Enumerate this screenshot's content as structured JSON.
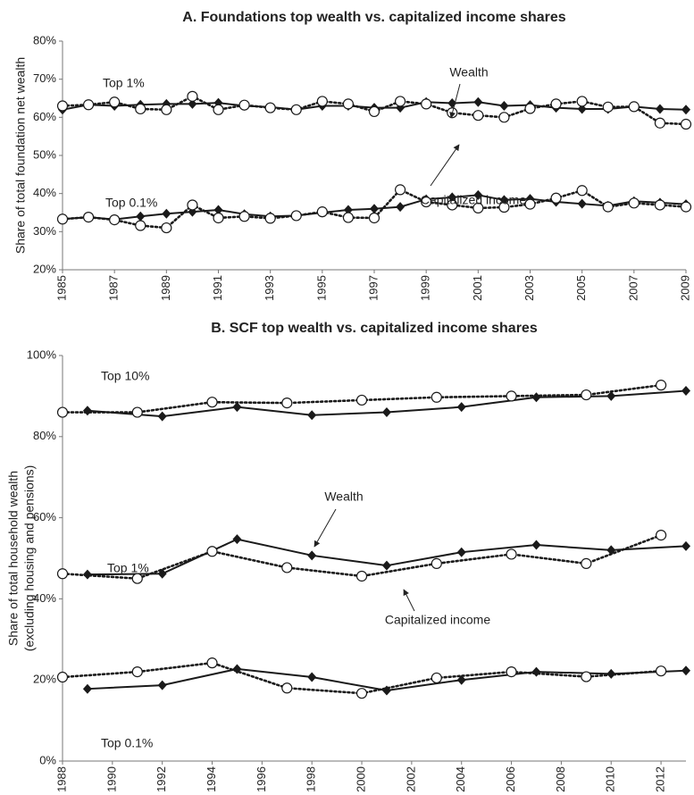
{
  "chart_data": [
    {
      "type": "line",
      "title": "A. Foundations top wealth vs. capitalized income shares",
      "ylabel": [
        "Share of total foundation net wealth"
      ],
      "xlim": [
        1985,
        2009
      ],
      "xticks": [
        1985,
        1987,
        1989,
        1991,
        1993,
        1995,
        1997,
        1999,
        2001,
        2003,
        2005,
        2007,
        2009
      ],
      "ylim": [
        20,
        80
      ],
      "yticks": [
        {
          "value": 20,
          "label": "20%"
        },
        {
          "value": 30,
          "label": "30%"
        },
        {
          "value": 40,
          "label": "40%"
        },
        {
          "value": 50,
          "label": "50%"
        },
        {
          "value": 60,
          "label": "60%"
        },
        {
          "value": 70,
          "label": "70%"
        },
        {
          "value": 80,
          "label": "80%"
        }
      ],
      "annotations": [
        "Top 1%",
        "Wealth",
        "Capitalized income",
        "Top 0.1%"
      ],
      "series": [
        {
          "marker": "diamond",
          "dash": "solid",
          "color": "#1a1a1a",
          "x": [
            1985,
            1986,
            1987,
            1988,
            1989,
            1990,
            1991,
            1992,
            1993,
            1994,
            1995,
            1996,
            1997,
            1998,
            1999,
            2000,
            2001,
            2002,
            2003,
            2004,
            2005,
            2006,
            2007,
            2008,
            2009
          ],
          "values": [
            62,
            63.3,
            63,
            63.3,
            63.5,
            63.5,
            63.8,
            63,
            62.7,
            62,
            63,
            63,
            62.5,
            62.5,
            64,
            63.7,
            64,
            63,
            63.2,
            62.5,
            62.2,
            62.2,
            62.8,
            62.2,
            62
          ]
        },
        {
          "marker": "circle",
          "dash": "dotted",
          "color": "#1a1a1a",
          "x": [
            1985,
            1986,
            1987,
            1988,
            1989,
            1990,
            1991,
            1992,
            1993,
            1994,
            1995,
            1996,
            1997,
            1998,
            1999,
            2000,
            2001,
            2002,
            2003,
            2004,
            2005,
            2006,
            2007,
            2008,
            2009
          ],
          "values": [
            63,
            63.3,
            64,
            62.2,
            62,
            65.5,
            62,
            63.2,
            62.5,
            62,
            64.2,
            63.5,
            61.5,
            64.2,
            63.5,
            61.2,
            60.5,
            60,
            62.3,
            63.5,
            64.2,
            62.7,
            62.8,
            58.5,
            58.2
          ]
        },
        {
          "marker": "diamond",
          "dash": "solid",
          "color": "#1a1a1a",
          "x": [
            1985,
            1986,
            1987,
            1988,
            1989,
            1990,
            1991,
            1992,
            1993,
            1994,
            1995,
            1996,
            1997,
            1998,
            1999,
            2000,
            2001,
            2002,
            2003,
            2004,
            2005,
            2006,
            2007,
            2008,
            2009
          ],
          "values": [
            33.3,
            33.8,
            33.2,
            34,
            34.7,
            35.2,
            35.7,
            34.6,
            34,
            34.2,
            35,
            35.7,
            36,
            36.5,
            38.5,
            39,
            39.6,
            38.3,
            38.6,
            37.8,
            37.3,
            36.8,
            38,
            37.6,
            37.2
          ]
        },
        {
          "marker": "circle",
          "dash": "dotted",
          "color": "#1a1a1a",
          "x": [
            1985,
            1986,
            1987,
            1988,
            1989,
            1990,
            1991,
            1992,
            1993,
            1994,
            1995,
            1996,
            1997,
            1998,
            1999,
            2000,
            2001,
            2002,
            2003,
            2004,
            2005,
            2006,
            2007,
            2008,
            2009
          ],
          "values": [
            33.3,
            33.8,
            33.1,
            31.6,
            31,
            37,
            33.6,
            34,
            33.5,
            34.2,
            35.2,
            33.7,
            33.6,
            41,
            37.8,
            37,
            36.2,
            36.4,
            37.2,
            38.8,
            40.8,
            36.5,
            37.5,
            37,
            36.5
          ]
        }
      ]
    },
    {
      "type": "line",
      "title": "B. SCF top wealth vs. capitalized income shares",
      "ylabel": [
        "Share of total household wealth",
        "(excluding housing and pensions)"
      ],
      "xlim": [
        1988,
        2013
      ],
      "xticks": [
        1988,
        1990,
        1992,
        1994,
        1996,
        1998,
        2000,
        2002,
        2004,
        2006,
        2008,
        2010,
        2012
      ],
      "ylim": [
        0,
        100
      ],
      "yticks": [
        {
          "value": 0,
          "label": "0%"
        },
        {
          "value": 20,
          "label": "20%"
        },
        {
          "value": 40,
          "label": "40%"
        },
        {
          "value": 60,
          "label": "60%"
        },
        {
          "value": 80,
          "label": "80%"
        },
        {
          "value": 100,
          "label": "100%"
        }
      ],
      "annotations": [
        "Top 10%",
        "Wealth",
        "Top 1%",
        "Capitalized income",
        "Top 0.1%"
      ],
      "series": [
        {
          "marker": "diamond",
          "dash": "solid",
          "color": "#1a1a1a",
          "x": [
            1989,
            1992,
            1995,
            1998,
            2001,
            2004,
            2007,
            2010,
            2013
          ],
          "values": [
            86.4,
            85,
            87.3,
            85.3,
            86,
            87.3,
            89.7,
            90,
            91.3
          ]
        },
        {
          "marker": "circle",
          "dash": "dotted",
          "color": "#1a1a1a",
          "x": [
            1988,
            1991,
            1994,
            1997,
            2000,
            2003,
            2006,
            2009,
            2012
          ],
          "values": [
            86,
            86,
            88.5,
            88.3,
            89,
            89.7,
            90,
            90.3,
            92.7
          ]
        },
        {
          "marker": "diamond",
          "dash": "solid",
          "color": "#1a1a1a",
          "x": [
            1989,
            1992,
            1995,
            1998,
            2001,
            2004,
            2007,
            2010,
            2013
          ],
          "values": [
            46,
            46.2,
            54.7,
            50.7,
            48.2,
            51.5,
            53.3,
            52,
            53
          ]
        },
        {
          "marker": "circle",
          "dash": "dotted",
          "color": "#1a1a1a",
          "x": [
            1988,
            1991,
            1994,
            1997,
            2000,
            2003,
            2006,
            2009,
            2012
          ],
          "values": [
            46.2,
            45,
            51.7,
            47.7,
            45.6,
            48.7,
            51,
            48.7,
            55.7
          ]
        },
        {
          "marker": "diamond",
          "dash": "solid",
          "color": "#1a1a1a",
          "x": [
            1989,
            1992,
            1995,
            1998,
            2001,
            2004,
            2007,
            2010,
            2013
          ],
          "values": [
            17.8,
            18.7,
            22.7,
            20.7,
            17.4,
            20,
            22,
            21.5,
            22.3
          ]
        },
        {
          "marker": "circle",
          "dash": "dotted",
          "color": "#1a1a1a",
          "x": [
            1988,
            1991,
            1994,
            1997,
            2000,
            2003,
            2006,
            2009,
            2012
          ],
          "values": [
            20.7,
            22,
            24.2,
            18,
            16.7,
            20.5,
            22,
            20.8,
            22.2
          ]
        }
      ]
    }
  ]
}
